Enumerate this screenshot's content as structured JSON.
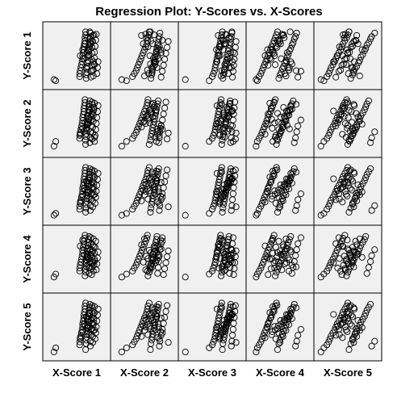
{
  "chart_data": {
    "type": "scatter",
    "title": "Regression Plot: Y-Scores vs. X-Scores",
    "x_labels": [
      "X-Score 1",
      "X-Score 2",
      "X-Score 3",
      "X-Score 4",
      "X-Score 5"
    ],
    "y_labels": [
      "Y-Score 1",
      "Y-Score 2",
      "Y-Score 3",
      "Y-Score 4",
      "Y-Score 5"
    ],
    "marker": "open-circle",
    "grid": false,
    "tick_labels": false,
    "n_points": 70,
    "x_scores": [
      [
        0.12,
        0.15,
        0.55,
        0.55,
        0.56,
        0.57,
        0.58,
        0.59,
        0.6,
        0.6,
        0.61,
        0.62,
        0.62,
        0.63,
        0.64,
        0.64,
        0.65,
        0.65,
        0.66,
        0.66,
        0.67,
        0.67,
        0.68,
        0.68,
        0.69,
        0.69,
        0.7,
        0.7,
        0.71,
        0.71,
        0.72,
        0.72,
        0.73,
        0.73,
        0.74,
        0.74,
        0.75,
        0.75,
        0.76,
        0.76,
        0.77,
        0.77,
        0.78,
        0.78,
        0.79,
        0.8,
        0.8,
        0.81,
        0.82,
        0.83,
        0.84,
        0.85,
        0.86,
        0.56,
        0.6,
        0.64,
        0.68,
        0.72,
        0.76,
        0.8,
        0.63,
        0.67,
        0.71,
        0.75,
        0.79,
        0.66,
        0.7,
        0.74,
        0.78,
        0.69
      ],
      [
        0.12,
        0.2,
        0.3,
        0.33,
        0.36,
        0.38,
        0.4,
        0.42,
        0.44,
        0.46,
        0.48,
        0.5,
        0.52,
        0.54,
        0.55,
        0.56,
        0.58,
        0.6,
        0.61,
        0.62,
        0.63,
        0.64,
        0.65,
        0.66,
        0.67,
        0.68,
        0.69,
        0.7,
        0.71,
        0.72,
        0.73,
        0.74,
        0.75,
        0.76,
        0.78,
        0.8,
        0.82,
        0.84,
        0.86,
        0.88,
        0.9,
        0.45,
        0.5,
        0.55,
        0.6,
        0.65,
        0.7,
        0.75,
        0.8,
        0.52,
        0.57,
        0.62,
        0.67,
        0.72,
        0.77,
        0.48,
        0.53,
        0.58,
        0.63,
        0.68,
        0.73,
        0.78,
        0.56,
        0.61,
        0.66,
        0.71,
        0.59,
        0.64,
        0.69,
        0.74
      ],
      [
        0.05,
        0.45,
        0.5,
        0.52,
        0.54,
        0.55,
        0.56,
        0.57,
        0.58,
        0.59,
        0.6,
        0.61,
        0.62,
        0.63,
        0.64,
        0.65,
        0.66,
        0.67,
        0.68,
        0.69,
        0.7,
        0.71,
        0.72,
        0.73,
        0.74,
        0.75,
        0.76,
        0.77,
        0.78,
        0.79,
        0.8,
        0.81,
        0.82,
        0.83,
        0.84,
        0.85,
        0.86,
        0.87,
        0.88,
        0.89,
        0.9,
        0.6,
        0.65,
        0.7,
        0.75,
        0.8,
        0.85,
        0.62,
        0.67,
        0.72,
        0.77,
        0.82,
        0.58,
        0.63,
        0.68,
        0.73,
        0.78,
        0.83,
        0.66,
        0.71,
        0.76,
        0.81,
        0.64,
        0.69,
        0.74,
        0.79,
        0.61,
        0.7,
        0.84,
        0.57
      ],
      [
        0.1,
        0.12,
        0.15,
        0.18,
        0.2,
        0.22,
        0.24,
        0.26,
        0.28,
        0.3,
        0.32,
        0.34,
        0.36,
        0.38,
        0.4,
        0.42,
        0.44,
        0.46,
        0.48,
        0.5,
        0.52,
        0.54,
        0.56,
        0.58,
        0.6,
        0.62,
        0.64,
        0.66,
        0.68,
        0.7,
        0.72,
        0.74,
        0.76,
        0.78,
        0.8,
        0.85,
        0.3,
        0.35,
        0.4,
        0.45,
        0.5,
        0.55,
        0.6,
        0.65,
        0.7,
        0.33,
        0.38,
        0.43,
        0.48,
        0.53,
        0.58,
        0.63,
        0.68,
        0.25,
        0.37,
        0.47,
        0.57,
        0.67,
        0.77,
        0.42,
        0.52,
        0.62,
        0.36,
        0.46,
        0.56,
        0.66,
        0.41,
        0.51,
        0.61,
        0.29
      ],
      [
        0.05,
        0.1,
        0.15,
        0.18,
        0.2,
        0.22,
        0.25,
        0.28,
        0.3,
        0.32,
        0.35,
        0.38,
        0.4,
        0.42,
        0.45,
        0.48,
        0.5,
        0.52,
        0.55,
        0.58,
        0.6,
        0.62,
        0.65,
        0.68,
        0.7,
        0.72,
        0.75,
        0.78,
        0.8,
        0.82,
        0.85,
        0.88,
        0.9,
        0.95,
        0.3,
        0.35,
        0.4,
        0.45,
        0.5,
        0.55,
        0.6,
        0.65,
        0.7,
        0.38,
        0.43,
        0.48,
        0.53,
        0.58,
        0.63,
        0.46,
        0.51,
        0.56,
        0.61,
        0.41,
        0.49,
        0.57,
        0.44,
        0.52,
        0.6,
        0.47,
        0.54,
        0.5,
        0.36,
        0.64,
        0.42,
        0.58,
        0.33,
        0.67,
        0.26,
        0.74
      ]
    ],
    "y_scores": [
      [
        0.1,
        0.08,
        0.15,
        0.2,
        0.25,
        0.3,
        0.35,
        0.4,
        0.45,
        0.5,
        0.55,
        0.6,
        0.65,
        0.7,
        0.75,
        0.8,
        0.85,
        0.9,
        0.12,
        0.18,
        0.22,
        0.28,
        0.32,
        0.38,
        0.42,
        0.48,
        0.52,
        0.58,
        0.62,
        0.68,
        0.72,
        0.78,
        0.82,
        0.88,
        0.14,
        0.24,
        0.34,
        0.44,
        0.54,
        0.64,
        0.74,
        0.84,
        0.16,
        0.26,
        0.36,
        0.46,
        0.56,
        0.66,
        0.76,
        0.86,
        0.2,
        0.3,
        0.4,
        0.5,
        0.6,
        0.7,
        0.8,
        0.9,
        0.25,
        0.35,
        0.45,
        0.55,
        0.65,
        0.75,
        0.85,
        0.3,
        0.5,
        0.7,
        0.4,
        0.6
      ],
      [
        0.12,
        0.2,
        0.25,
        0.3,
        0.35,
        0.4,
        0.45,
        0.5,
        0.55,
        0.6,
        0.65,
        0.7,
        0.75,
        0.8,
        0.85,
        0.9,
        0.15,
        0.22,
        0.28,
        0.33,
        0.38,
        0.43,
        0.48,
        0.53,
        0.58,
        0.63,
        0.68,
        0.73,
        0.78,
        0.83,
        0.88,
        0.18,
        0.26,
        0.36,
        0.46,
        0.56,
        0.66,
        0.76,
        0.86,
        0.24,
        0.34,
        0.44,
        0.54,
        0.64,
        0.74,
        0.84,
        0.2,
        0.3,
        0.4,
        0.5,
        0.6,
        0.7,
        0.8,
        0.32,
        0.42,
        0.52,
        0.62,
        0.72,
        0.82,
        0.27,
        0.37,
        0.47,
        0.57,
        0.67,
        0.77,
        0.41,
        0.51,
        0.61,
        0.71,
        0.49
      ],
      [
        0.1,
        0.13,
        0.2,
        0.25,
        0.3,
        0.35,
        0.4,
        0.45,
        0.5,
        0.55,
        0.6,
        0.65,
        0.7,
        0.75,
        0.8,
        0.85,
        0.9,
        0.15,
        0.22,
        0.28,
        0.33,
        0.38,
        0.43,
        0.48,
        0.53,
        0.58,
        0.63,
        0.68,
        0.73,
        0.78,
        0.83,
        0.88,
        0.18,
        0.26,
        0.36,
        0.46,
        0.56,
        0.66,
        0.76,
        0.86,
        0.24,
        0.34,
        0.44,
        0.54,
        0.64,
        0.74,
        0.84,
        0.3,
        0.4,
        0.5,
        0.6,
        0.7,
        0.8,
        0.32,
        0.42,
        0.52,
        0.62,
        0.72,
        0.82,
        0.45,
        0.55,
        0.65,
        0.37,
        0.47,
        0.57,
        0.67,
        0.51,
        0.61,
        0.71,
        0.49
      ],
      [
        0.2,
        0.25,
        0.3,
        0.35,
        0.4,
        0.45,
        0.5,
        0.55,
        0.6,
        0.65,
        0.7,
        0.75,
        0.8,
        0.85,
        0.9,
        0.22,
        0.28,
        0.33,
        0.38,
        0.43,
        0.48,
        0.53,
        0.58,
        0.63,
        0.68,
        0.73,
        0.78,
        0.83,
        0.88,
        0.26,
        0.36,
        0.46,
        0.56,
        0.66,
        0.76,
        0.86,
        0.24,
        0.34,
        0.44,
        0.54,
        0.64,
        0.74,
        0.84,
        0.3,
        0.4,
        0.5,
        0.6,
        0.7,
        0.8,
        0.32,
        0.42,
        0.52,
        0.62,
        0.72,
        0.82,
        0.45,
        0.55,
        0.65,
        0.37,
        0.47,
        0.57,
        0.67,
        0.51,
        0.61,
        0.71,
        0.49,
        0.35,
        0.58,
        0.44,
        0.53
      ],
      [
        0.08,
        0.15,
        0.2,
        0.25,
        0.3,
        0.35,
        0.4,
        0.45,
        0.5,
        0.55,
        0.6,
        0.65,
        0.7,
        0.75,
        0.8,
        0.85,
        0.9,
        0.12,
        0.22,
        0.28,
        0.33,
        0.38,
        0.43,
        0.48,
        0.53,
        0.58,
        0.63,
        0.68,
        0.73,
        0.78,
        0.83,
        0.88,
        0.18,
        0.26,
        0.36,
        0.46,
        0.56,
        0.66,
        0.76,
        0.86,
        0.24,
        0.34,
        0.44,
        0.54,
        0.64,
        0.74,
        0.84,
        0.3,
        0.4,
        0.5,
        0.6,
        0.7,
        0.8,
        0.32,
        0.42,
        0.52,
        0.62,
        0.72,
        0.82,
        0.45,
        0.55,
        0.65,
        0.37,
        0.47,
        0.57,
        0.67,
        0.51,
        0.61,
        0.71,
        0.49
      ]
    ]
  }
}
